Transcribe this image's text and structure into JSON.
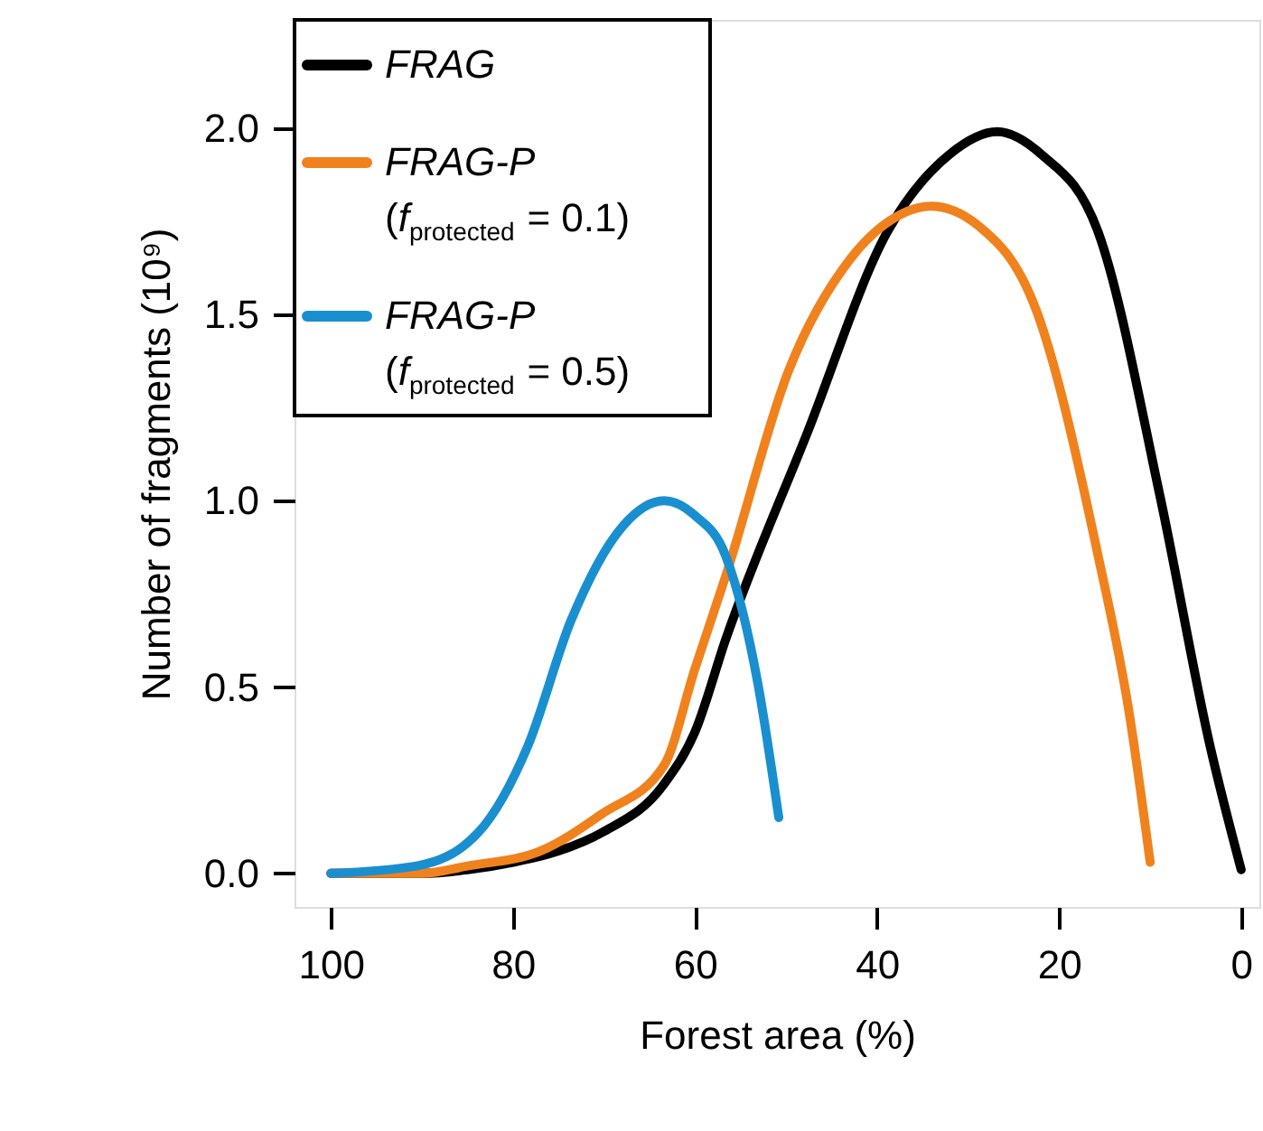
{
  "chart_data": {
    "type": "line",
    "xlabel": "Forest area (%)",
    "ylabel": "Number of fragments (10⁹)",
    "xlim": [
      104,
      -2
    ],
    "xticks": [
      100,
      80,
      60,
      40,
      20,
      0
    ],
    "ylim": [
      -0.09,
      2.29
    ],
    "yticks": [
      {
        "value": 0,
        "label": "0.0"
      },
      0.5,
      {
        "value": 1,
        "label": "1.0"
      },
      1.5,
      {
        "value": 2,
        "label": "2.0"
      }
    ],
    "grid": false,
    "legend": "top left",
    "marker": "none",
    "line_style": "solid",
    "series": [
      {
        "name": "FRAG",
        "color": "#000000",
        "x": [
          100,
          90,
          85,
          80,
          75,
          70.2,
          63.4,
          60,
          56.6,
          47.7,
          38.9,
          32,
          26.8,
          22,
          15.7,
          8.9,
          3.4,
          0
        ],
        "values": [
          0,
          0,
          0.01,
          0.03,
          0.06,
          0.11,
          0.24,
          0.38,
          0.63,
          1.18,
          1.72,
          1.93,
          1.99,
          1.93,
          1.72,
          1.01,
          0.34,
          0.01
        ]
      },
      {
        "name": "FRAG-P\n(f$_{protected}$ = 0.1)",
        "color": "#f0821e",
        "x": [
          100,
          90,
          85,
          77,
          70.2,
          63.4,
          60,
          56.6,
          49.7,
          42.9,
          38,
          34.1,
          29,
          22.5,
          15.7,
          12.3,
          10
        ],
        "values": [
          0,
          0,
          0.02,
          0.06,
          0.16,
          0.29,
          0.55,
          0.8,
          1.35,
          1.65,
          1.76,
          1.79,
          1.74,
          1.51,
          0.85,
          0.43,
          0.03
        ]
      },
      {
        "name": "FRAG-P\n(f$_{protected}$ = 0.5)",
        "color": "#1a8fd0",
        "x": [
          100,
          90.6,
          83.8,
          78.4,
          73.6,
          68,
          63.4,
          60,
          56.6,
          53.1,
          50.8
        ],
        "values": [
          0,
          0.02,
          0.11,
          0.34,
          0.68,
          0.93,
          1.0,
          0.96,
          0.85,
          0.51,
          0.15
        ]
      }
    ]
  }
}
